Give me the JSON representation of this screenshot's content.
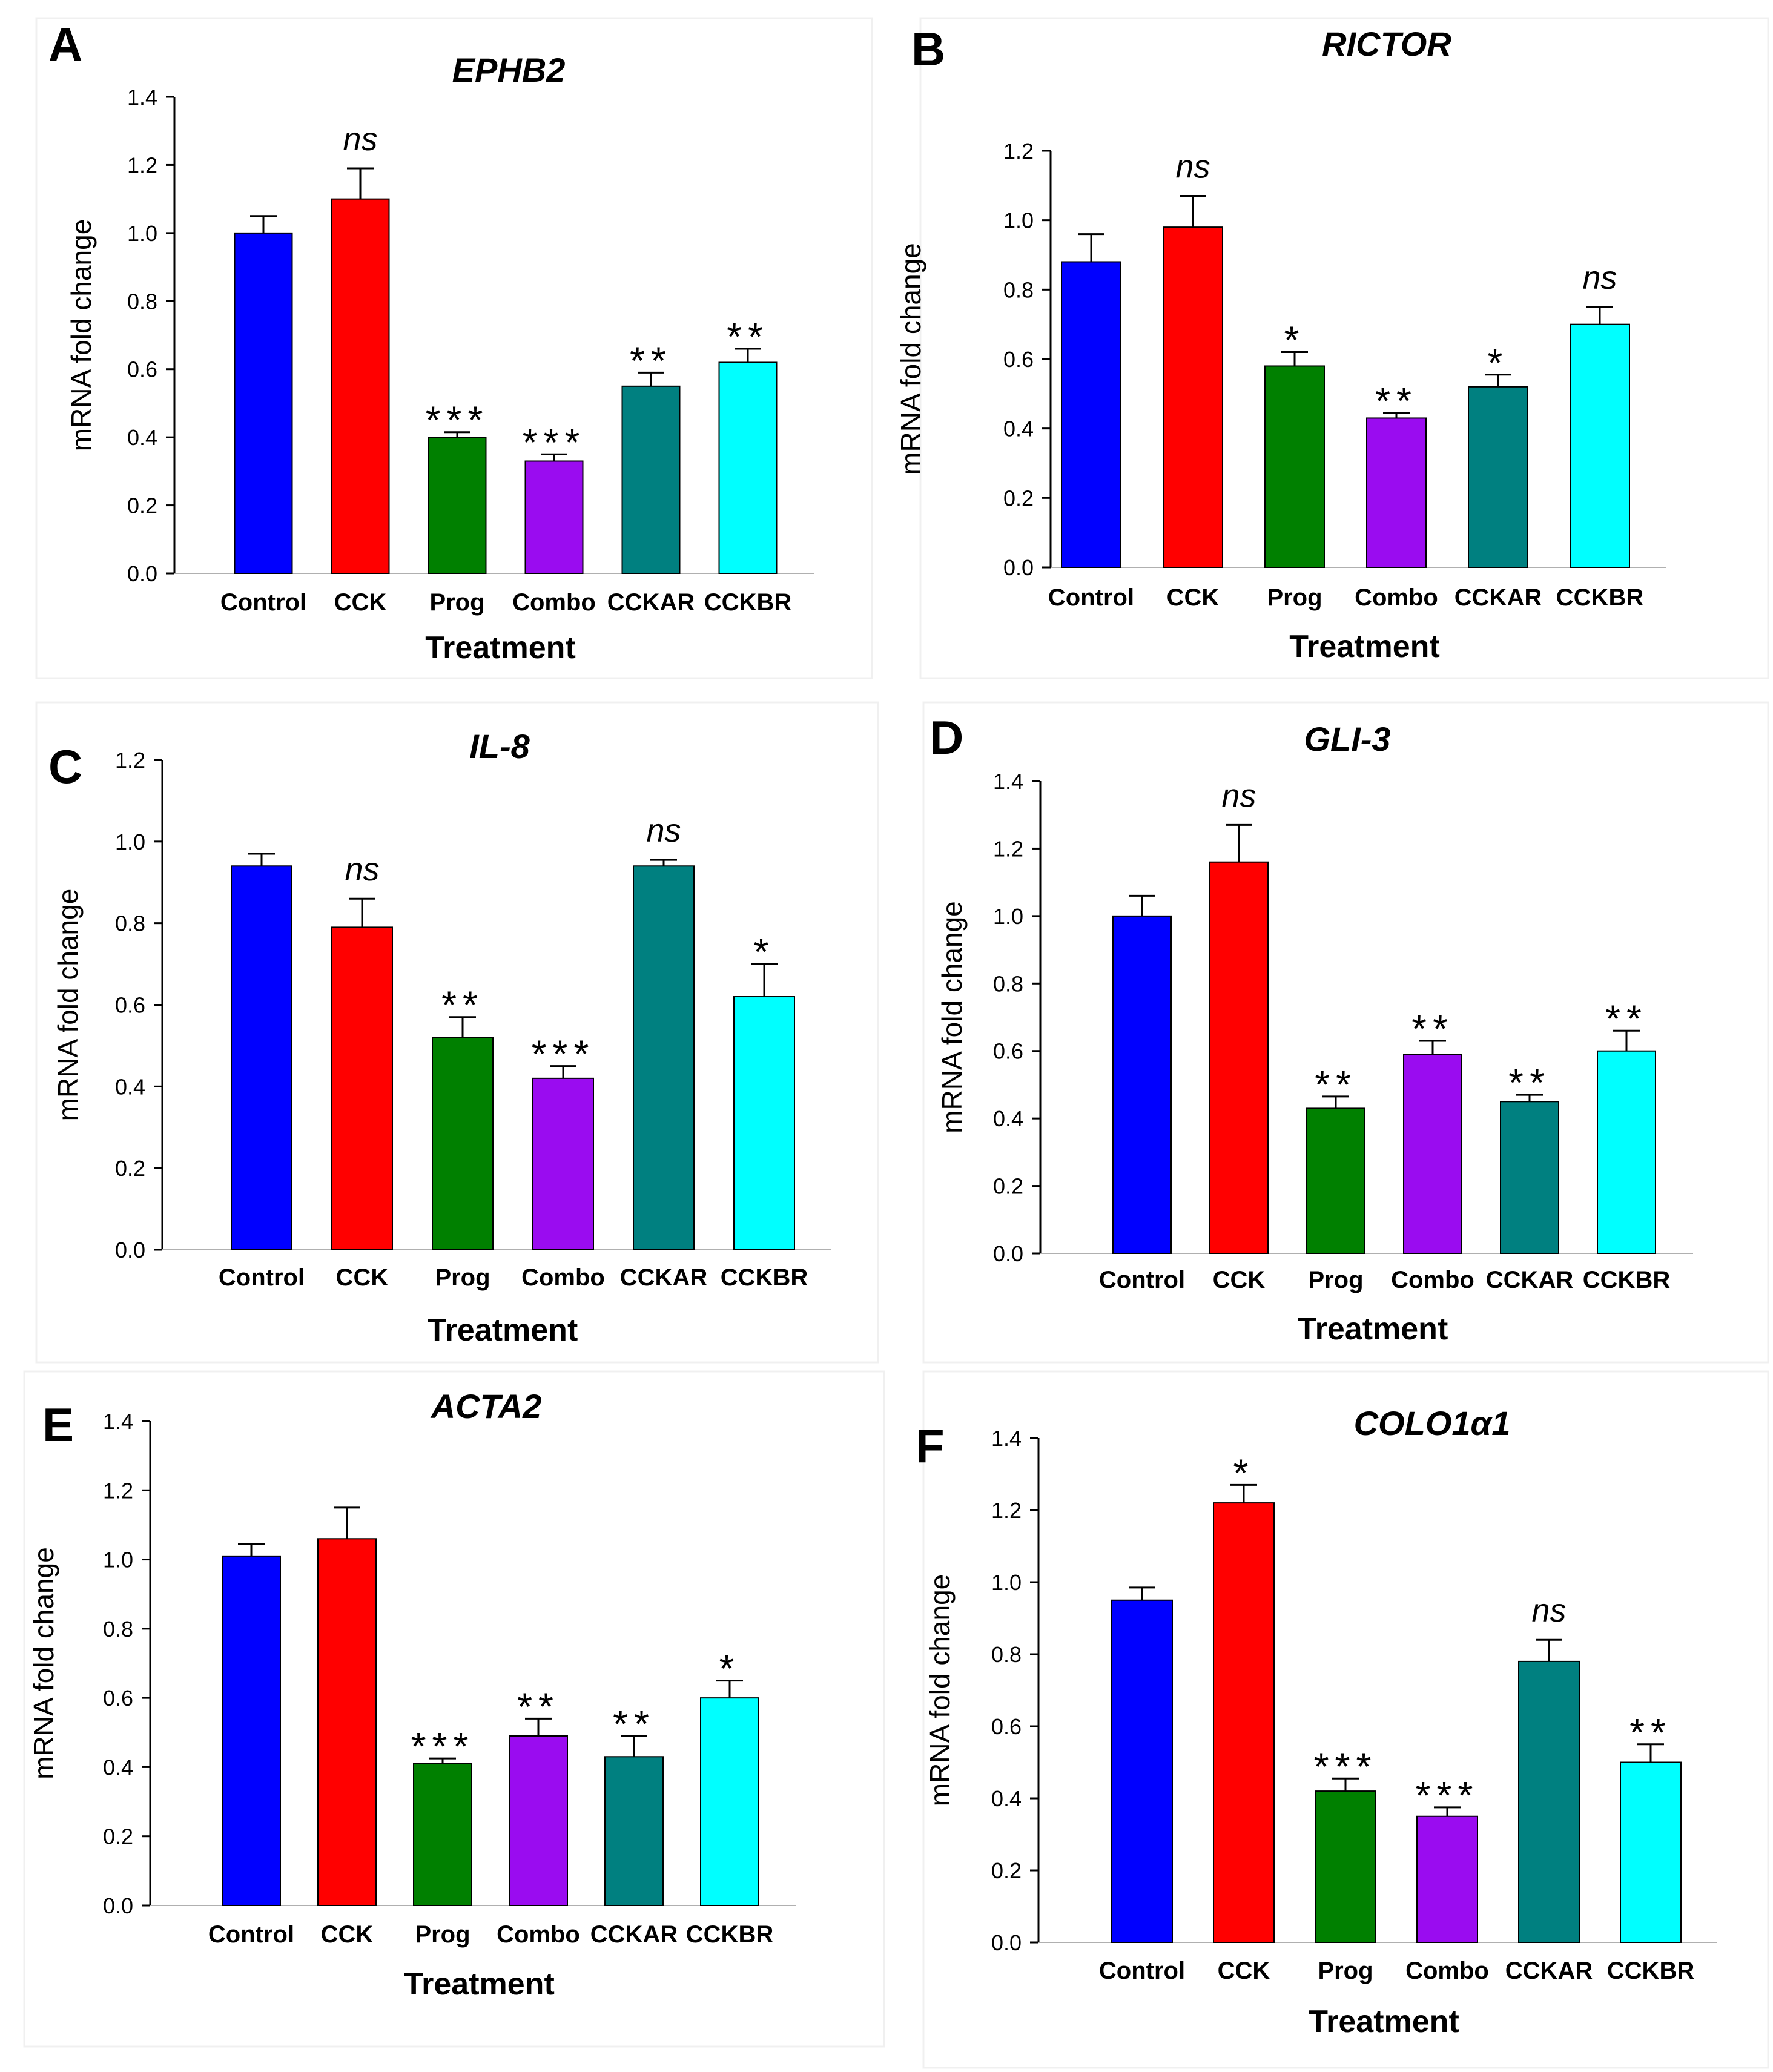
{
  "figure": {
    "colors": {
      "Control": "#0000ff",
      "CCK": "#ff0000",
      "Prog": "#008000",
      "Combo": "#9a0cf0",
      "CCKAR": "#008080",
      "CCKBR": "#00ffff"
    }
  },
  "chart_data": [
    {
      "type": "bar",
      "panel": "A",
      "title": "EPHB2",
      "xlabel": "Treatment",
      "ylabel": "mRNA fold change",
      "categories": [
        "Control",
        "CCK",
        "Prog",
        "Combo",
        "CCKAR",
        "CCKBR"
      ],
      "values": [
        1.0,
        1.1,
        0.4,
        0.33,
        0.55,
        0.62
      ],
      "errors": [
        0.05,
        0.09,
        0.015,
        0.02,
        0.04,
        0.04
      ],
      "significance": [
        "",
        "ns",
        "***",
        "***",
        "**",
        "**"
      ],
      "ylim": [
        0,
        1.4
      ],
      "yticks": [
        "0.0",
        "0.2",
        "0.4",
        "0.6",
        "0.8",
        "1.0",
        "1.2",
        "1.4"
      ]
    },
    {
      "type": "bar",
      "panel": "B",
      "title": "RICTOR",
      "xlabel": "Treatment",
      "ylabel": "mRNA fold change",
      "categories": [
        "Control",
        "CCK",
        "Prog",
        "Combo",
        "CCKAR",
        "CCKBR"
      ],
      "values": [
        0.88,
        0.98,
        0.58,
        0.43,
        0.52,
        0.7
      ],
      "errors": [
        0.08,
        0.09,
        0.04,
        0.015,
        0.035,
        0.05
      ],
      "significance": [
        "",
        "ns",
        "*",
        "**",
        "*",
        "ns"
      ],
      "ylim": [
        0,
        1.2
      ],
      "yticks": [
        "0.0",
        "0.2",
        "0.4",
        "0.6",
        "0.8",
        "1.0",
        "1.2"
      ]
    },
    {
      "type": "bar",
      "panel": "C",
      "title": "IL-8",
      "xlabel": "Treatment",
      "ylabel": "mRNA fold change",
      "categories": [
        "Control",
        "CCK",
        "Prog",
        "Combo",
        "CCKAR",
        "CCKBR"
      ],
      "values": [
        0.94,
        0.79,
        0.52,
        0.42,
        0.94,
        0.62
      ],
      "errors": [
        0.03,
        0.07,
        0.05,
        0.03,
        0.015,
        0.08
      ],
      "significance": [
        "",
        "ns",
        "**",
        "***",
        "ns",
        "*"
      ],
      "ylim": [
        0,
        1.2
      ],
      "yticks": [
        "0.0",
        "0.2",
        "0.4",
        "0.6",
        "0.8",
        "1.0",
        "1.2"
      ]
    },
    {
      "type": "bar",
      "panel": "D",
      "title": "GLI-3",
      "xlabel": "Treatment",
      "ylabel": "mRNA fold change",
      "categories": [
        "Control",
        "CCK",
        "Prog",
        "Combo",
        "CCKAR",
        "CCKBR"
      ],
      "values": [
        1.0,
        1.16,
        0.43,
        0.59,
        0.45,
        0.6
      ],
      "errors": [
        0.06,
        0.11,
        0.035,
        0.04,
        0.02,
        0.06
      ],
      "significance": [
        "",
        "ns",
        "**",
        "**",
        "**",
        "**"
      ],
      "ylim": [
        0,
        1.4
      ],
      "yticks": [
        "0.0",
        "0.2",
        "0.4",
        "0.6",
        "0.8",
        "1.0",
        "1.2",
        "1.4"
      ]
    },
    {
      "type": "bar",
      "panel": "E",
      "title": "ACTA2",
      "xlabel": "Treatment",
      "ylabel": "mRNA fold change",
      "categories": [
        "Control",
        "CCK",
        "Prog",
        "Combo",
        "CCKAR",
        "CCKBR"
      ],
      "values": [
        1.01,
        1.06,
        0.41,
        0.49,
        0.43,
        0.6
      ],
      "errors": [
        0.035,
        0.09,
        0.015,
        0.05,
        0.06,
        0.05
      ],
      "significance": [
        "",
        "",
        "***",
        "**",
        "**",
        "*"
      ],
      "ylim": [
        0,
        1.4
      ],
      "yticks": [
        "0.0",
        "0.2",
        "0.4",
        "0.6",
        "0.8",
        "1.0",
        "1.2",
        "1.4"
      ]
    },
    {
      "type": "bar",
      "panel": "F",
      "title": "COLO1α1",
      "xlabel": "Treatment",
      "ylabel": "mRNA fold change",
      "categories": [
        "Control",
        "CCK",
        "Prog",
        "Combo",
        "CCKAR",
        "CCKBR"
      ],
      "values": [
        0.95,
        1.22,
        0.42,
        0.35,
        0.78,
        0.5
      ],
      "errors": [
        0.035,
        0.05,
        0.035,
        0.025,
        0.06,
        0.05
      ],
      "significance": [
        "",
        "*",
        "***",
        "***",
        "ns",
        "**"
      ],
      "ylim": [
        0,
        1.4
      ],
      "yticks": [
        "0.0",
        "0.2",
        "0.4",
        "0.6",
        "0.8",
        "1.0",
        "1.2",
        "1.4"
      ]
    }
  ]
}
